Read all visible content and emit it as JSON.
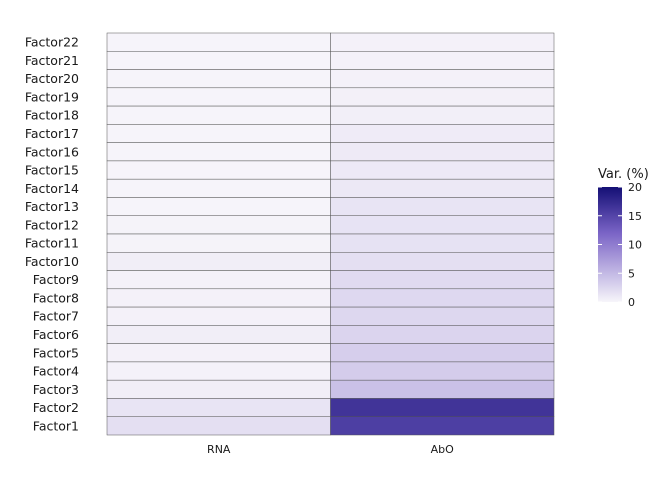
{
  "chart_data": {
    "type": "heatmap",
    "title": "",
    "xlabel": "",
    "ylabel": "",
    "x_categories": [
      "RNA",
      "AbO"
    ],
    "y_categories": [
      "Factor22",
      "Factor21",
      "Factor20",
      "Factor19",
      "Factor18",
      "Factor17",
      "Factor16",
      "Factor15",
      "Factor14",
      "Factor13",
      "Factor12",
      "Factor11",
      "Factor10",
      "Factor9",
      "Factor8",
      "Factor7",
      "Factor6",
      "Factor5",
      "Factor4",
      "Factor3",
      "Factor2",
      "Factor1"
    ],
    "series": [
      {
        "name": "RNA",
        "values": [
          0.1,
          0.1,
          0.1,
          0.1,
          0.1,
          0.1,
          0.1,
          0.1,
          0.1,
          0.1,
          0.2,
          0.2,
          0.6,
          0.3,
          0.3,
          0.3,
          0.6,
          0.3,
          0.3,
          0.6,
          1.4,
          1.8
        ]
      },
      {
        "name": "AbO",
        "values": [
          0.3,
          0.3,
          0.3,
          0.4,
          0.5,
          0.8,
          0.9,
          1.0,
          1.1,
          1.4,
          1.5,
          1.6,
          1.8,
          2.2,
          2.4,
          2.5,
          2.7,
          3.2,
          3.4,
          4.3,
          16.5,
          15.5
        ]
      }
    ],
    "legend": {
      "title": "Var. (%)",
      "ticks": [
        0,
        5,
        10,
        15,
        20
      ],
      "range": [
        0,
        20
      ],
      "position": "right",
      "color_low": "#f7f5fa",
      "color_high": "#140f75",
      "color_mid": "#7a64c6"
    },
    "grid": false
  }
}
